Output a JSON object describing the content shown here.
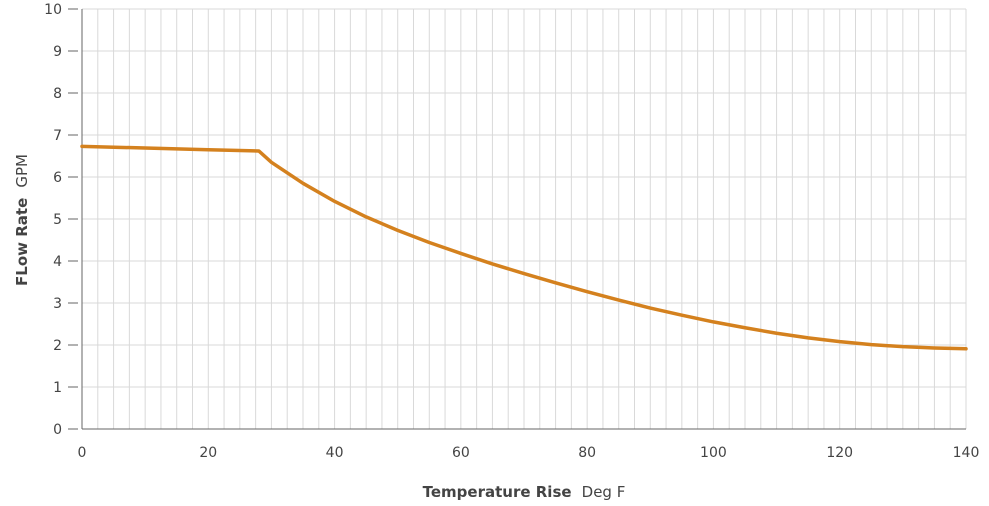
{
  "chart_data": {
    "type": "line",
    "xlabel_bold": "Temperature Rise",
    "xlabel_unit": "Deg F",
    "ylabel_bold": "FLow Rate",
    "ylabel_unit": "GPM",
    "xlim": [
      0,
      140
    ],
    "ylim": [
      0,
      10
    ],
    "x_ticks": [
      "0",
      "20",
      "40",
      "60",
      "80",
      "100",
      "120",
      "140"
    ],
    "y_ticks": [
      "0",
      "1",
      "2",
      "3",
      "4",
      "5",
      "6",
      "7",
      "8",
      "9",
      "10"
    ],
    "grid": true,
    "series": [
      {
        "color": "#D4811E",
        "x": [
          0,
          10,
          20,
          28,
          30,
          35,
          40,
          45,
          50,
          55,
          60,
          65,
          70,
          75,
          80,
          85,
          90,
          95,
          100,
          105,
          110,
          115,
          120,
          125,
          130,
          135,
          140
        ],
        "y": [
          6.73,
          6.69,
          6.65,
          6.62,
          6.35,
          5.85,
          5.42,
          5.05,
          4.73,
          4.44,
          4.18,
          3.93,
          3.7,
          3.48,
          3.27,
          3.07,
          2.88,
          2.71,
          2.55,
          2.41,
          2.28,
          2.17,
          2.08,
          2.01,
          1.96,
          1.93,
          1.91
        ]
      }
    ]
  }
}
